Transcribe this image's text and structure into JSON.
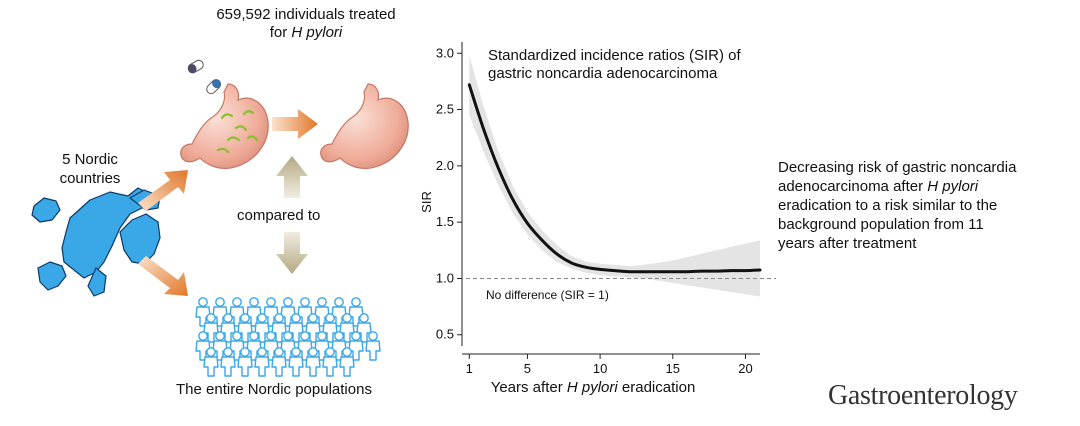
{
  "left_panel": {
    "treated_line1": "659,592 individuals treated",
    "treated_line2_prefix": "for ",
    "treated_line2_italic": "H pylori",
    "countries_line1": "5 Nordic",
    "countries_line2": "countries",
    "compared_to": "compared to",
    "populations_caption": "The entire Nordic populations",
    "colors": {
      "arrow_orange": "#e07a2a",
      "arrow_tan": "#b9ad8a",
      "map_blue": "#3aa7e6",
      "people_blue": "#6cc4f0",
      "stomach_pink": "#f1b7a6"
    }
  },
  "right_panel": {
    "summary_lines": [
      "Decreasing risk of gastric noncardia",
      "adenocarcinoma after <i>H pylori</i>",
      "eradication to a risk similar to the",
      "background population from 11",
      "years after treatment"
    ],
    "journal": "Gastroenterology"
  },
  "chart_data": {
    "type": "line",
    "title_line1": "Standardized incidence ratios (SIR) of",
    "title_line2": "gastric noncardia adenocarcinoma",
    "xlabel_prefix": "Years after ",
    "xlabel_italic": "H pylori",
    "xlabel_suffix": " eradication",
    "ylabel": "SIR",
    "xlim": [
      0.5,
      21
    ],
    "ylim": [
      0.4,
      3.1
    ],
    "xticks": [
      1,
      5,
      10,
      15,
      20
    ],
    "yticks": [
      0.5,
      1.0,
      1.5,
      2.0,
      2.5,
      3.0
    ],
    "ytick_labels": [
      "0.5",
      "1.0",
      "1.5",
      "2.0",
      "2.5",
      "3.0"
    ],
    "reference": {
      "y": 1.0,
      "label": "No difference (SIR = 1)"
    },
    "series": [
      {
        "name": "SIR",
        "x": [
          1,
          2,
          3,
          4,
          5,
          6,
          7,
          8,
          9,
          10,
          11,
          12,
          13,
          14,
          15,
          16,
          17,
          18,
          19,
          20,
          21
        ],
        "y": [
          2.72,
          2.32,
          1.98,
          1.7,
          1.49,
          1.34,
          1.22,
          1.14,
          1.1,
          1.08,
          1.07,
          1.06,
          1.06,
          1.06,
          1.06,
          1.06,
          1.065,
          1.065,
          1.07,
          1.07,
          1.075
        ],
        "lower": [
          2.45,
          2.12,
          1.83,
          1.58,
          1.39,
          1.25,
          1.15,
          1.09,
          1.05,
          1.03,
          1.02,
          1.01,
          1.0,
          0.98,
          0.96,
          0.94,
          0.92,
          0.9,
          0.88,
          0.86,
          0.84
        ],
        "upper": [
          2.98,
          2.52,
          2.13,
          1.82,
          1.59,
          1.43,
          1.3,
          1.2,
          1.15,
          1.13,
          1.12,
          1.11,
          1.12,
          1.14,
          1.16,
          1.19,
          1.22,
          1.25,
          1.28,
          1.31,
          1.34
        ]
      }
    ]
  }
}
